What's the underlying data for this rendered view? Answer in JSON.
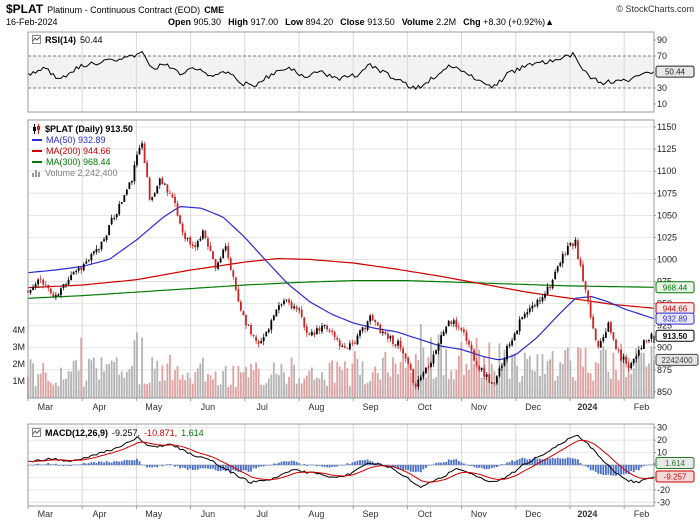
{
  "header": {
    "symbol": "$PLAT",
    "description": "Platinum - Continuous Contract (EOD)",
    "exchange": "CME",
    "copyright": "© StockCharts.com",
    "date": "16-Feb-2024",
    "quote": {
      "open_label": "Open",
      "open": "905.30",
      "high_label": "High",
      "high": "917.00",
      "low_label": "Low",
      "low": "894.20",
      "close_label": "Close",
      "close": "913.50",
      "volume_label": "Volume",
      "volume": "2.2M",
      "chg_label": "Chg",
      "chg": "+8.30 (+0.92%)",
      "chg_arrow": "▲"
    }
  },
  "colors": {
    "up": "#000000",
    "down": "#cc2222",
    "ma50": "#2b2bd4",
    "ma200": "#cc0000",
    "ma300": "#007a00",
    "histogram": "#4a6fc8",
    "volume_up": "#b4b4b4",
    "volume_down": "#dfa0a0",
    "volume_text": "#808080",
    "grid": "#e4e4e4",
    "month_grid": "#d8d8d8",
    "border": "#999999"
  },
  "rsi_panel": {
    "label": "RSI(14)",
    "value": "50.44",
    "ticks": [
      90,
      70,
      30,
      10
    ],
    "axis_labels": [
      {
        "text": "50.44",
        "value": 50.44,
        "fg": "#222222",
        "bg": "#e8e8e8"
      }
    ]
  },
  "main_panel": {
    "legend_symbol": "$PLAT (Daily) 913.50",
    "legend_ma50": "MA(50) 932.89",
    "legend_ma200": "MA(200) 944.66",
    "legend_ma300": "MA(300) 968.44",
    "legend_volume": "Volume 2,242,400",
    "price_ticks": [
      1150,
      1125,
      1100,
      1075,
      1050,
      1025,
      1000,
      975,
      950,
      925,
      900,
      875,
      850
    ],
    "volume_ticks": [
      "4M",
      "3M",
      "2M",
      "1M"
    ],
    "axis_labels": [
      {
        "text": "968.44",
        "value": 968.44,
        "fg": "#007a00",
        "bg": "#eaf3ea"
      },
      {
        "text": "944.66",
        "value": 944.66,
        "fg": "#cc0000",
        "bg": "#f6eaea"
      },
      {
        "text": "932.89",
        "value": 932.89,
        "fg": "#2b2bd4",
        "bg": "#eaeaf6"
      },
      {
        "text": "913.50",
        "value": 913.5,
        "fg": "#000000",
        "bg": "#ffffff",
        "bold": true
      }
    ],
    "volume_axis_label": {
      "text": "2242400",
      "value_m": 2.2424,
      "fg": "#444444",
      "bg": "#e4e4e4"
    }
  },
  "macd_panel": {
    "label": "MACD(12,26,9)",
    "v_macd": "-9.257,",
    "v_signal": "-10.871,",
    "v_hist": "1.614",
    "ticks": [
      30,
      20,
      10,
      0,
      -10,
      -20,
      -30
    ],
    "axis_labels": [
      {
        "text": "1.614",
        "value": 1.614,
        "fg": "#2a7a2a",
        "bg": "#e8e8e8"
      },
      {
        "text": "-9.257",
        "value": -9.257,
        "fg": "#cc0000",
        "bg": "#f6d9d9"
      }
    ]
  },
  "x_axis": {
    "months": [
      "Mar",
      "Apr",
      "May",
      "Jun",
      "Jul",
      "Aug",
      "Sep",
      "Oct",
      "Nov",
      "Dec",
      "2024",
      "Feb"
    ],
    "bold_index": 10
  },
  "chart_data": {
    "type": "candlestick",
    "title": "$PLAT Platinum - Continuous Contract (EOD) CME",
    "x_months": [
      "Mar",
      "Apr",
      "May",
      "Jun",
      "Jul",
      "Aug",
      "Sep",
      "Oct",
      "Nov",
      "Dec",
      "2024",
      "Feb"
    ],
    "t_domain": [
      0,
      11.55
    ],
    "price_ylim": [
      843,
      1158
    ],
    "ohlc_last": {
      "date": "16-Feb-2024",
      "open": 905.3,
      "high": 917.0,
      "low": 894.2,
      "close": 913.5,
      "volume": 2242400
    },
    "price_anchors": [
      [
        0,
        962
      ],
      [
        0.25,
        978
      ],
      [
        0.5,
        955
      ],
      [
        0.8,
        985
      ],
      [
        1.0,
        992
      ],
      [
        1.3,
        1012
      ],
      [
        1.6,
        1050
      ],
      [
        1.9,
        1088
      ],
      [
        2.1,
        1138
      ],
      [
        2.25,
        1065
      ],
      [
        2.45,
        1092
      ],
      [
        2.65,
        1072
      ],
      [
        2.85,
        1032
      ],
      [
        3.05,
        1012
      ],
      [
        3.25,
        1032
      ],
      [
        3.45,
        992
      ],
      [
        3.65,
        1012
      ],
      [
        3.9,
        948
      ],
      [
        4.1,
        918
      ],
      [
        4.3,
        905
      ],
      [
        4.5,
        932
      ],
      [
        4.75,
        955
      ],
      [
        5.0,
        940
      ],
      [
        5.2,
        912
      ],
      [
        5.5,
        926
      ],
      [
        5.8,
        900
      ],
      [
        6.05,
        908
      ],
      [
        6.3,
        934
      ],
      [
        6.55,
        918
      ],
      [
        6.85,
        902
      ],
      [
        7.15,
        858
      ],
      [
        7.45,
        888
      ],
      [
        7.75,
        930
      ],
      [
        8.0,
        922
      ],
      [
        8.3,
        880
      ],
      [
        8.6,
        856
      ],
      [
        8.85,
        902
      ],
      [
        9.1,
        932
      ],
      [
        9.4,
        952
      ],
      [
        9.7,
        978
      ],
      [
        9.95,
        1015
      ],
      [
        10.1,
        1018
      ],
      [
        10.3,
        958
      ],
      [
        10.5,
        902
      ],
      [
        10.7,
        926
      ],
      [
        10.9,
        892
      ],
      [
        11.1,
        880
      ],
      [
        11.3,
        902
      ],
      [
        11.55,
        913.5
      ]
    ],
    "ma50": {
      "period": 50,
      "last": 932.89,
      "anchors": [
        [
          0,
          985
        ],
        [
          0.5,
          988
        ],
        [
          1,
          992
        ],
        [
          1.5,
          1000
        ],
        [
          2,
          1022
        ],
        [
          2.5,
          1048
        ],
        [
          2.8,
          1060
        ],
        [
          3.2,
          1058
        ],
        [
          3.6,
          1048
        ],
        [
          4,
          1025
        ],
        [
          4.4,
          998
        ],
        [
          4.8,
          972
        ],
        [
          5.2,
          952
        ],
        [
          5.6,
          938
        ],
        [
          6,
          928
        ],
        [
          6.4,
          922
        ],
        [
          6.8,
          918
        ],
        [
          7.2,
          910
        ],
        [
          7.6,
          902
        ],
        [
          8,
          898
        ],
        [
          8.4,
          890
        ],
        [
          8.7,
          886
        ],
        [
          9,
          892
        ],
        [
          9.4,
          912
        ],
        [
          9.8,
          938
        ],
        [
          10.1,
          956
        ],
        [
          10.4,
          958
        ],
        [
          10.7,
          952
        ],
        [
          11,
          944
        ],
        [
          11.3,
          938
        ],
        [
          11.55,
          932.89
        ]
      ]
    },
    "ma200": {
      "period": 200,
      "last": 944.66,
      "anchors": [
        [
          0,
          968
        ],
        [
          1,
          971
        ],
        [
          2,
          977
        ],
        [
          3,
          988
        ],
        [
          4,
          997
        ],
        [
          4.6,
          1001
        ],
        [
          5.2,
          1000
        ],
        [
          6,
          996
        ],
        [
          6.8,
          989
        ],
        [
          7.6,
          981
        ],
        [
          8.4,
          972
        ],
        [
          9.2,
          963
        ],
        [
          10,
          956
        ],
        [
          10.8,
          949
        ],
        [
          11.55,
          944.66
        ]
      ]
    },
    "ma300": {
      "period": 300,
      "last": 968.44,
      "anchors": [
        [
          0,
          956
        ],
        [
          1,
          959
        ],
        [
          2,
          963
        ],
        [
          3,
          967
        ],
        [
          4,
          971
        ],
        [
          5,
          974
        ],
        [
          6,
          976
        ],
        [
          7,
          976
        ],
        [
          8,
          974
        ],
        [
          9,
          972
        ],
        [
          10,
          970
        ],
        [
          11,
          969
        ],
        [
          11.55,
          968.44
        ]
      ]
    },
    "volume": {
      "last": 2242400,
      "ylim_millions": [
        0,
        4.4
      ],
      "envelope_anchors_m": [
        [
          0,
          1.5
        ],
        [
          1,
          1.45
        ],
        [
          2,
          1.7
        ],
        [
          3,
          1.55
        ],
        [
          4,
          1.4
        ],
        [
          5,
          1.3
        ],
        [
          6,
          1.5
        ],
        [
          7,
          2.1
        ],
        [
          7.3,
          2.5
        ],
        [
          8,
          2.1
        ],
        [
          8.6,
          2.4
        ],
        [
          9,
          1.8
        ],
        [
          9.5,
          1.7
        ],
        [
          10,
          1.9
        ],
        [
          10.5,
          2.0
        ],
        [
          11,
          1.7
        ],
        [
          11.55,
          2.24
        ]
      ]
    },
    "rsi": {
      "period": 14,
      "last": 50.44,
      "ylim": [
        0,
        100
      ],
      "overbought": 70,
      "oversold": 30,
      "anchors": [
        [
          0,
          46
        ],
        [
          0.3,
          56
        ],
        [
          0.6,
          40
        ],
        [
          0.9,
          56
        ],
        [
          1.2,
          60
        ],
        [
          1.5,
          64
        ],
        [
          1.8,
          68
        ],
        [
          2.1,
          74
        ],
        [
          2.3,
          52
        ],
        [
          2.5,
          62
        ],
        [
          2.8,
          48
        ],
        [
          3.1,
          56
        ],
        [
          3.4,
          44
        ],
        [
          3.7,
          52
        ],
        [
          3.95,
          36
        ],
        [
          4.2,
          32
        ],
        [
          4.5,
          48
        ],
        [
          4.8,
          56
        ],
        [
          5.1,
          44
        ],
        [
          5.4,
          52
        ],
        [
          5.7,
          40
        ],
        [
          6.05,
          46
        ],
        [
          6.3,
          58
        ],
        [
          6.6,
          48
        ],
        [
          6.9,
          38
        ],
        [
          7.15,
          28
        ],
        [
          7.45,
          42
        ],
        [
          7.75,
          58
        ],
        [
          8.05,
          50
        ],
        [
          8.35,
          36
        ],
        [
          8.6,
          32
        ],
        [
          8.9,
          50
        ],
        [
          9.2,
          58
        ],
        [
          9.5,
          62
        ],
        [
          9.8,
          68
        ],
        [
          10.05,
          72
        ],
        [
          10.2,
          56
        ],
        [
          10.4,
          42
        ],
        [
          10.6,
          36
        ],
        [
          10.9,
          40
        ],
        [
          11.1,
          38
        ],
        [
          11.3,
          48
        ],
        [
          11.55,
          50.44
        ]
      ]
    },
    "macd": {
      "params": "12,26,9",
      "last_macd": -9.257,
      "last_signal": -10.871,
      "last_hist": 1.614,
      "ylim": [
        -33,
        33
      ],
      "anchors": [
        [
          0,
          2
        ],
        [
          0.4,
          5
        ],
        [
          0.8,
          3
        ],
        [
          1.2,
          8
        ],
        [
          1.6,
          13
        ],
        [
          2.0,
          22
        ],
        [
          2.3,
          14
        ],
        [
          2.6,
          17
        ],
        [
          3.0,
          9
        ],
        [
          3.4,
          3
        ],
        [
          3.8,
          -7
        ],
        [
          4.1,
          -14
        ],
        [
          4.5,
          -11
        ],
        [
          4.9,
          -4
        ],
        [
          5.3,
          -7
        ],
        [
          5.7,
          -10
        ],
        [
          6.0,
          -6
        ],
        [
          6.3,
          2
        ],
        [
          6.7,
          -2
        ],
        [
          7.0,
          -11
        ],
        [
          7.25,
          -18
        ],
        [
          7.6,
          -11
        ],
        [
          7.9,
          -3
        ],
        [
          8.2,
          -7
        ],
        [
          8.5,
          -14
        ],
        [
          8.8,
          -11
        ],
        [
          9.1,
          -1
        ],
        [
          9.5,
          9
        ],
        [
          9.9,
          19
        ],
        [
          10.15,
          24
        ],
        [
          10.45,
          12
        ],
        [
          10.75,
          -3
        ],
        [
          11.05,
          -12
        ],
        [
          11.25,
          -14
        ],
        [
          11.55,
          -9.257
        ]
      ]
    }
  }
}
